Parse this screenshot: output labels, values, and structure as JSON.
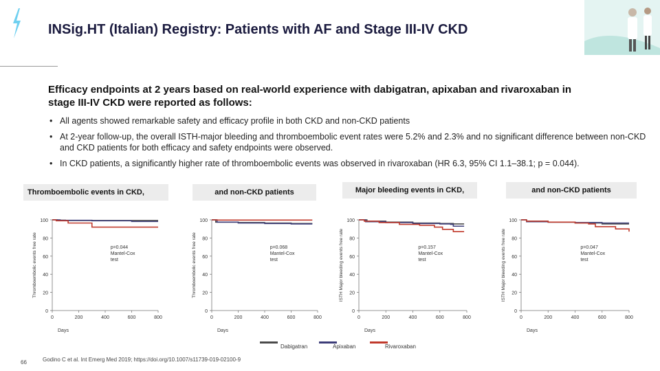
{
  "title": "INSig.HT (Italian) Registry: Patients with AF and Stage III-IV CKD",
  "subtitle": "Efficacy endpoints at 2 years based on real-world experience with dabigatran, apixaban and rivaroxaban in stage III-IV CKD were reported as follows:",
  "bullets": [
    "All agents showed remarkable safety and efficacy profile in both CKD and non-CKD patients",
    "At 2-year follow-up, the overall ISTH-major bleeding and thromboembolic event rates were 5.2% and 2.3% and no significant difference between non-CKD and CKD patients for both efficacy and safety endpoints were observed.",
    "In CKD patients, a significantly higher rate of thromboembolic events was observed in rivaroxaban (HR 6.3, 95% CI 1.1–38.1; p = 0.044)."
  ],
  "headers": {
    "te_ckd": "Thromboembolic events in CKD,",
    "te_nonckd": "and non-CKD patients",
    "mb_ckd": "Major bleeding events in CKD,",
    "mb_nonckd": "and non-CKD patients"
  },
  "colors": {
    "dabigatran": "#4a4a4a",
    "apixaban": "#3c3c78",
    "rivaroxaban": "#c0392b"
  },
  "chart_data": [
    {
      "type": "line",
      "ylabel": "Thromboembolic events free rate",
      "xlabel": "Days",
      "xlim": [
        0,
        800
      ],
      "ylim": [
        0,
        100
      ],
      "xticks": [
        "0",
        "200",
        "400",
        "600",
        "800"
      ],
      "yticks": [
        "0",
        "20",
        "40",
        "60",
        "80",
        "100"
      ],
      "annotation": [
        "p=0.044",
        "Mantel-Cox",
        "test"
      ],
      "series": [
        {
          "name": "Dabigatran",
          "x": [
            0,
            40,
            100,
            800
          ],
          "y": [
            100,
            99.6,
            99.3,
            99.3
          ]
        },
        {
          "name": "Apixaban",
          "x": [
            0,
            60,
            300,
            600,
            800
          ],
          "y": [
            100,
            99.5,
            99,
            98.2,
            98.2
          ]
        },
        {
          "name": "Rivaroxaban",
          "x": [
            0,
            30,
            120,
            300,
            800
          ],
          "y": [
            100,
            99,
            96.5,
            92,
            92
          ]
        }
      ]
    },
    {
      "type": "line",
      "ylabel": "Thromboembolic events free rate",
      "xlabel": "Days",
      "xlim": [
        0,
        800
      ],
      "ylim": [
        0,
        100
      ],
      "xticks": [
        "0",
        "200",
        "400",
        "600",
        "800"
      ],
      "yticks": [
        "0",
        "20",
        "40",
        "60",
        "80",
        "100"
      ],
      "annotation": [
        "p=0.068",
        "Mantel-Cox",
        "test"
      ],
      "series": [
        {
          "name": "Dabigatran",
          "x": [
            0,
            30,
            200,
            400,
            600,
            760
          ],
          "y": [
            100,
            97.5,
            97,
            96.5,
            96,
            96
          ]
        },
        {
          "name": "Apixaban",
          "x": [
            0,
            40,
            200,
            400,
            600,
            760
          ],
          "y": [
            100,
            97.5,
            96.5,
            96,
            95.5,
            95.5
          ]
        },
        {
          "name": "Rivaroxaban",
          "x": [
            0,
            40,
            400,
            760
          ],
          "y": [
            100,
            99.8,
            99.8,
            99.8
          ]
        }
      ]
    },
    {
      "type": "line",
      "ylabel": "ISTH Major bleeding events free rate",
      "xlabel": "Days",
      "xlim": [
        0,
        800
      ],
      "ylim": [
        0,
        100
      ],
      "xticks": [
        "0",
        "200",
        "400",
        "600",
        "800"
      ],
      "yticks": [
        "0",
        "20",
        "40",
        "60",
        "80",
        "100"
      ],
      "annotation": [
        "p=0.157",
        "Mantel-Cox",
        "test"
      ],
      "series": [
        {
          "name": "Dabigatran",
          "x": [
            0,
            60,
            200,
            400,
            600,
            700,
            780
          ],
          "y": [
            100,
            98.5,
            97.5,
            96.5,
            96,
            95.5,
            95.5
          ]
        },
        {
          "name": "Apixaban",
          "x": [
            0,
            50,
            200,
            400,
            600,
            680,
            700,
            780
          ],
          "y": [
            100,
            98,
            97,
            96,
            95.5,
            95,
            93,
            93
          ]
        },
        {
          "name": "Rivaroxaban",
          "x": [
            0,
            40,
            150,
            300,
            450,
            560,
            620,
            700,
            780
          ],
          "y": [
            100,
            98.5,
            97,
            95,
            94,
            92,
            89.5,
            87,
            87
          ]
        }
      ]
    },
    {
      "type": "line",
      "ylabel": "ISTH Major bleeding events free rate",
      "xlabel": "Days",
      "xlim": [
        0,
        800
      ],
      "ylim": [
        0,
        100
      ],
      "xticks": [
        "0",
        "200",
        "400",
        "600",
        "800"
      ],
      "yticks": [
        "0",
        "20",
        "40",
        "60",
        "80",
        "100"
      ],
      "annotation": [
        "p=0.047",
        "Mantel-Cox",
        "test"
      ],
      "series": [
        {
          "name": "Dabigatran",
          "x": [
            0,
            40,
            200,
            400,
            600,
            800
          ],
          "y": [
            100,
            98.5,
            97.5,
            96.5,
            95.5,
            95.5
          ]
        },
        {
          "name": "Apixaban",
          "x": [
            0,
            40,
            200,
            400,
            600,
            800
          ],
          "y": [
            100,
            98,
            97.5,
            97,
            96.5,
            96.5
          ]
        },
        {
          "name": "Rivaroxaban",
          "x": [
            0,
            40,
            200,
            400,
            500,
            550,
            700,
            800
          ],
          "y": [
            100,
            98.5,
            97.5,
            96.5,
            95.5,
            92.5,
            90,
            87
          ]
        }
      ]
    }
  ],
  "legend": [
    "Dabigatran",
    "Apixaban",
    "Rivaroxaban"
  ],
  "footnote": "Godino C et al. Int Emerg Med 2019;  https://doi.org/10.1007/s11739-019-02100-9",
  "page_number": "66"
}
